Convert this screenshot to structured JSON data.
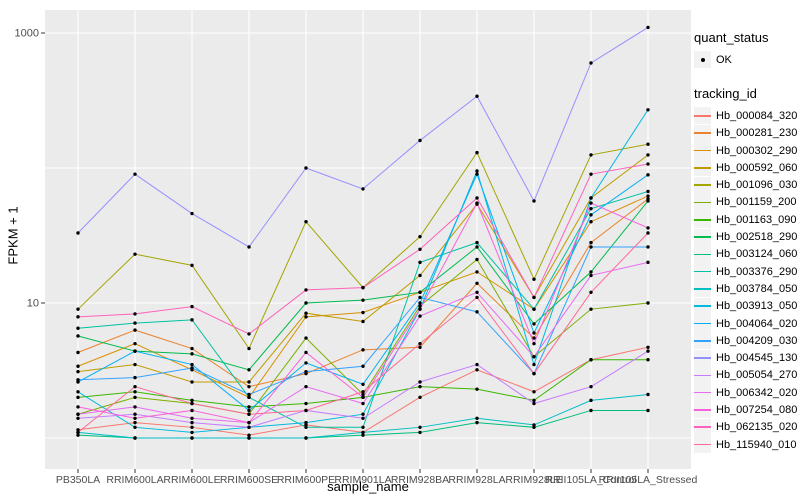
{
  "chart_data": {
    "type": "line",
    "title": "",
    "xlabel": "sample_name",
    "ylabel": "FPKM + 1",
    "y_scale": "log10",
    "ylim": [
      0.6,
      1500
    ],
    "grid": true,
    "panel_bg": "#EBEBEB",
    "grid_color": "#FFFFFF",
    "point_color": "#000000",
    "axis_text_color": "#4D4D4D",
    "y_ticks": [
      {
        "label": "10",
        "value": 10
      },
      {
        "label": "1000",
        "value": 1000
      }
    ],
    "y_gridlines": [
      1,
      10,
      100,
      1000
    ],
    "categories": [
      "PB350LA",
      "RRIM600LA",
      "RRIM600LE",
      "RRIM600SE",
      "RRIM600PE",
      "RRIM901LA",
      "RRIM928BA",
      "RRIM928LA",
      "RRIM928LE",
      "RRII105LA_Control",
      "RRII105LA_Stressed"
    ],
    "legend": {
      "quant_status": {
        "title": "quant_status",
        "items": [
          {
            "label": "OK",
            "glyph": "point",
            "color": "#000000"
          }
        ]
      },
      "tracking_id": {
        "title": "tracking_id"
      }
    },
    "series": [
      {
        "name": "Hb_000084_320",
        "color": "#F8766D",
        "values": [
          1.15,
          1.3,
          1.2,
          1.05,
          1.25,
          1.1,
          2.0,
          3.2,
          2.2,
          3.8,
          4.7
        ]
      },
      {
        "name": "Hb_000281_230",
        "color": "#EA8331",
        "values": [
          4.3,
          6.3,
          4.6,
          2.4,
          3.0,
          4.5,
          4.7,
          14,
          5.5,
          28,
          59
        ]
      },
      {
        "name": "Hb_000302_290",
        "color": "#D89000",
        "values": [
          3.4,
          5.0,
          3.2,
          2.0,
          7.9,
          8.5,
          12,
          17,
          9.0,
          40,
          62
        ]
      },
      {
        "name": "Hb_000592_060",
        "color": "#C09B00",
        "values": [
          3.1,
          3.5,
          2.6,
          2.6,
          8.4,
          7.3,
          16,
          54,
          11,
          60,
          125
        ]
      },
      {
        "name": "Hb_001096_030",
        "color": "#A3A500",
        "values": [
          9.0,
          23,
          19,
          4.6,
          40,
          13,
          31,
          130,
          15,
          125,
          150
        ]
      },
      {
        "name": "Hb_001159_200",
        "color": "#7CAE00",
        "values": [
          1.5,
          2.0,
          1.8,
          1.5,
          5.5,
          2.1,
          9.5,
          21,
          4.0,
          9.0,
          10
        ]
      },
      {
        "name": "Hb_001163_090",
        "color": "#39B600",
        "values": [
          2.0,
          2.2,
          1.9,
          1.7,
          1.8,
          2.0,
          2.4,
          2.3,
          1.9,
          3.8,
          3.8
        ]
      },
      {
        "name": "Hb_002518_290",
        "color": "#00BB4E",
        "values": [
          5.7,
          4.4,
          4.2,
          3.2,
          10,
          10.5,
          12,
          26,
          7.0,
          17,
          57
        ]
      },
      {
        "name": "Hb_003124_060",
        "color": "#00BF7D",
        "values": [
          1.05,
          1.0,
          1.0,
          1.0,
          1.0,
          1.05,
          1.1,
          1.3,
          1.2,
          1.6,
          1.6
        ]
      },
      {
        "name": "Hb_003376_290",
        "color": "#00C1A3",
        "values": [
          6.5,
          7.1,
          7.5,
          2.0,
          1.2,
          1.2,
          20,
          28,
          9.0,
          50,
          67
        ]
      },
      {
        "name": "Hb_003784_050",
        "color": "#00BFC4",
        "values": [
          1.1,
          1.0,
          1.0,
          1.0,
          1.0,
          1.1,
          1.2,
          1.4,
          1.25,
          1.9,
          2.1
        ]
      },
      {
        "name": "Hb_003913_050",
        "color": "#00BAE0",
        "values": [
          2.2,
          1.2,
          1.1,
          1.2,
          1.3,
          1.5,
          9.0,
          95,
          3.5,
          60,
          270
        ]
      },
      {
        "name": "Hb_004064_020",
        "color": "#00B0F6",
        "values": [
          2.6,
          4.4,
          3.5,
          1.6,
          3.6,
          2.5,
          10,
          90,
          6.0,
          45,
          89
        ]
      },
      {
        "name": "Hb_004209_030",
        "color": "#35A2FF",
        "values": [
          2.7,
          2.8,
          3.3,
          2.1,
          3.1,
          3.4,
          11,
          8.6,
          3.0,
          26,
          26
        ]
      },
      {
        "name": "Hb_004545_130",
        "color": "#9590FF",
        "values": [
          33,
          90,
          46,
          26,
          100,
          70,
          160,
          340,
          57,
          600,
          1100
        ]
      },
      {
        "name": "Hb_005054_270",
        "color": "#C77CFF",
        "values": [
          1.4,
          1.5,
          1.3,
          1.2,
          1.6,
          1.4,
          2.6,
          3.5,
          1.8,
          2.4,
          4.4
        ]
      },
      {
        "name": "Hb_006342_020",
        "color": "#E76BF3",
        "values": [
          1.5,
          1.7,
          1.4,
          1.3,
          2.4,
          1.8,
          8.0,
          12,
          4.0,
          16,
          20
        ]
      },
      {
        "name": "Hb_007254_080",
        "color": "#FA62DB",
        "values": [
          1.7,
          1.4,
          1.6,
          1.3,
          4.3,
          2.0,
          9.0,
          55,
          5.0,
          55,
          36
        ]
      },
      {
        "name": "Hb_062135_020",
        "color": "#FF62BC",
        "values": [
          7.9,
          8.3,
          9.4,
          5.9,
          12.5,
          13,
          25,
          60,
          11,
          90,
          107
        ]
      },
      {
        "name": "Hb_115940_010",
        "color": "#FF6A98",
        "values": [
          1.1,
          2.4,
          1.8,
          1.5,
          1.6,
          2.2,
          5.0,
          11,
          3.0,
          12,
          33
        ]
      }
    ]
  }
}
